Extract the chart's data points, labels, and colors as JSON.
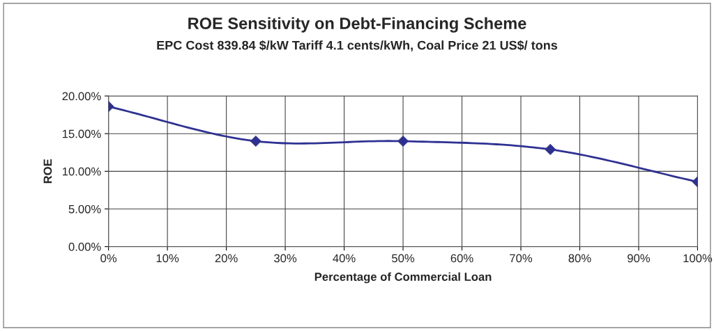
{
  "chart_data": {
    "type": "line",
    "title": "ROE Sensitivity on Debt-Financing Scheme",
    "subtitle": "EPC Cost 839.84 $/kW Tariff 4.1 cents/kWh, Coal Price 21 US$/ tons",
    "xlabel": "Percentage of Commercial Loan",
    "ylabel": "ROE",
    "x": [
      0,
      25,
      50,
      75,
      100
    ],
    "series": [
      {
        "color": "#2e3192",
        "values": [
          18.6,
          14.0,
          14.0,
          12.9,
          8.6
        ]
      }
    ],
    "xlim": [
      0,
      100
    ],
    "xticks": [
      {
        "value": 0,
        "label": "0%"
      },
      {
        "value": 10,
        "label": "10%"
      },
      {
        "value": 20,
        "label": "20%"
      },
      {
        "value": 30,
        "label": "30%"
      },
      {
        "value": 40,
        "label": "40%"
      },
      {
        "value": 50,
        "label": "50%"
      },
      {
        "value": 60,
        "label": "60%"
      },
      {
        "value": 70,
        "label": "70%"
      },
      {
        "value": 80,
        "label": "80%"
      },
      {
        "value": 90,
        "label": "90%"
      },
      {
        "value": 100,
        "label": "100%"
      }
    ],
    "ylim": [
      0,
      20
    ],
    "yticks": [
      {
        "value": 0,
        "label": "0.00%"
      },
      {
        "value": 5,
        "label": "5.00%"
      },
      {
        "value": 10,
        "label": "10.00%"
      },
      {
        "value": 15,
        "label": "15.00%"
      },
      {
        "value": 20,
        "label": "20.00%"
      }
    ],
    "grid": true,
    "legend": false,
    "marker": "diamond",
    "line_style": "solid"
  }
}
